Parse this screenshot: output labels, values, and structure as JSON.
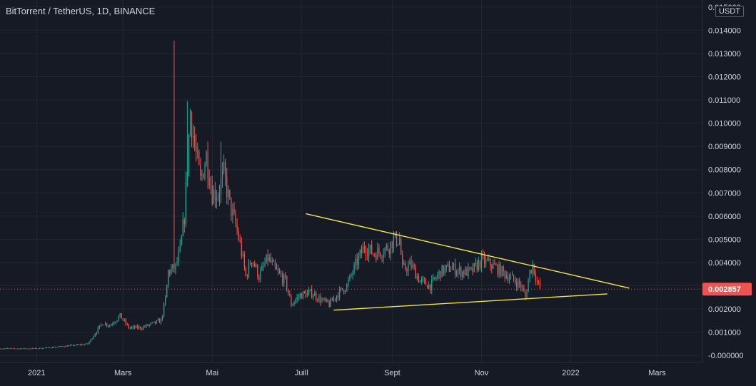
{
  "header": {
    "symbol_title": "BitTorrent / TetherUS, 1D, BINANCE",
    "currency": "USDT"
  },
  "colors": {
    "background": "#161a25",
    "grid": "#232632",
    "text": "#d1d4dc",
    "up": "#26a69a",
    "down": "#ef5350",
    "trendline": "#f2e34c",
    "price_line": "#ef5350"
  },
  "chart_data": {
    "type": "candlestick",
    "symbol": "BTT/USDT",
    "exchange": "BINANCE",
    "interval": "1D",
    "y_axis": {
      "ylim": [
        -0.0003,
        0.0153
      ],
      "tick_labels": [
        "0.015000",
        "0.014000",
        "0.013000",
        "0.012000",
        "0.011000",
        "0.010000",
        "0.009000",
        "0.008000",
        "0.007000",
        "0.006000",
        "0.005000",
        "0.004000",
        "0.003000",
        "0.002000",
        "0.001000",
        "-0.000000"
      ],
      "tick_values": [
        0.015,
        0.014,
        0.013,
        0.012,
        0.011,
        0.01,
        0.009,
        0.008,
        0.007,
        0.006,
        0.005,
        0.004,
        0.003,
        0.002,
        0.001,
        0.0
      ]
    },
    "x_axis": {
      "xlim": [
        "2020-12-07",
        "2022-04-01"
      ],
      "tick_labels": [
        "2021",
        "Mars",
        "Mai",
        "Juill",
        "Sept",
        "Nov",
        "2022",
        "Mars"
      ],
      "tick_dates": [
        "2021-01-01",
        "2021-03-01",
        "2021-05-01",
        "2021-07-01",
        "2021-09-01",
        "2021-11-01",
        "2022-01-01",
        "2022-03-01"
      ]
    },
    "price_path": [
      [
        "2020-12-07",
        0.0003
      ],
      [
        "2021-01-01",
        0.0003
      ],
      [
        "2021-01-20",
        0.0004
      ],
      [
        "2021-02-05",
        0.0005
      ],
      [
        "2021-02-15",
        0.0014
      ],
      [
        "2021-02-20",
        0.0013
      ],
      [
        "2021-02-27",
        0.0017
      ],
      [
        "2021-03-05",
        0.0012
      ],
      [
        "2021-03-14",
        0.0012
      ],
      [
        "2021-03-27",
        0.0015
      ],
      [
        "2021-03-30",
        0.0024
      ],
      [
        "2021-04-01",
        0.0036
      ],
      [
        "2021-04-06",
        0.0038
      ],
      [
        "2021-04-09",
        0.0045
      ],
      [
        "2021-04-12",
        0.006
      ],
      [
        "2021-04-16",
        0.0105
      ],
      [
        "2021-04-19",
        0.009
      ],
      [
        "2021-04-23",
        0.0075
      ],
      [
        "2021-04-27",
        0.0086
      ],
      [
        "2021-05-01",
        0.007
      ],
      [
        "2021-05-05",
        0.007
      ],
      [
        "2021-05-09",
        0.0078
      ],
      [
        "2021-05-13",
        0.0065
      ],
      [
        "2021-05-17",
        0.0056
      ],
      [
        "2021-05-20",
        0.0048
      ],
      [
        "2021-05-24",
        0.0034
      ],
      [
        "2021-05-28",
        0.0042
      ],
      [
        "2021-06-02",
        0.0034
      ],
      [
        "2021-06-08",
        0.0042
      ],
      [
        "2021-06-14",
        0.0036
      ],
      [
        "2021-06-20",
        0.0032
      ],
      [
        "2021-06-24",
        0.0022
      ],
      [
        "2021-06-30",
        0.0026
      ],
      [
        "2021-07-08",
        0.0027
      ],
      [
        "2021-07-14",
        0.0024
      ],
      [
        "2021-07-20",
        0.0022
      ],
      [
        "2021-07-25",
        0.0026
      ],
      [
        "2021-08-01",
        0.003
      ],
      [
        "2021-08-07",
        0.0039
      ],
      [
        "2021-08-13",
        0.0047
      ],
      [
        "2021-08-19",
        0.0044
      ],
      [
        "2021-08-25",
        0.0045
      ],
      [
        "2021-08-30",
        0.0047
      ],
      [
        "2021-09-02",
        0.005
      ],
      [
        "2021-09-06",
        0.005
      ],
      [
        "2021-09-08",
        0.0037
      ],
      [
        "2021-09-14",
        0.0039
      ],
      [
        "2021-09-20",
        0.0032
      ],
      [
        "2021-09-27",
        0.003
      ],
      [
        "2021-10-04",
        0.0036
      ],
      [
        "2021-10-11",
        0.0038
      ],
      [
        "2021-10-18",
        0.0036
      ],
      [
        "2021-10-25",
        0.0036
      ],
      [
        "2021-11-01",
        0.0041
      ],
      [
        "2021-11-08",
        0.0039
      ],
      [
        "2021-11-15",
        0.0036
      ],
      [
        "2021-11-22",
        0.0033
      ],
      [
        "2021-11-28",
        0.003
      ],
      [
        "2021-12-01",
        0.0025
      ],
      [
        "2021-12-04",
        0.0036
      ],
      [
        "2021-12-06",
        0.0039
      ],
      [
        "2021-12-09",
        0.0032
      ],
      [
        "2021-12-11",
        0.00286
      ]
    ],
    "spikes": [
      {
        "date": "2021-04-05",
        "high": 0.01355
      },
      {
        "date": "2021-04-14",
        "high": 0.01095
      },
      {
        "date": "2021-05-07",
        "high": 0.0092
      },
      {
        "date": "2021-09-04",
        "high": 0.00535
      }
    ],
    "last_price": 0.002857,
    "last_price_label": "0.002857",
    "trendlines": [
      {
        "name": "upper",
        "from": [
          "2021-07-04",
          0.0061
        ],
        "to": [
          "2022-02-10",
          0.0029
        ]
      },
      {
        "name": "lower",
        "from": [
          "2021-07-23",
          0.00195
        ],
        "to": [
          "2022-01-26",
          0.00265
        ]
      }
    ],
    "grid": true
  }
}
